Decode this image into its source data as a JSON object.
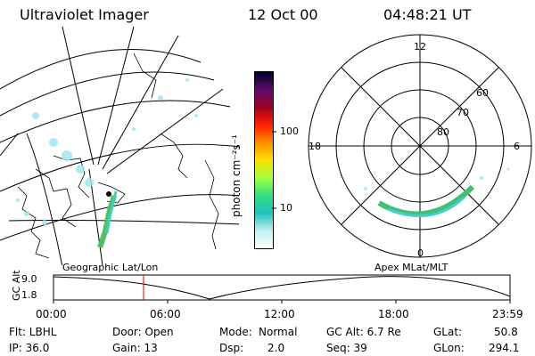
{
  "header": {
    "instrument": "Ultraviolet Imager",
    "date": "12 Oct 00",
    "time": "04:48:21 UT"
  },
  "geo_panel": {
    "label": "Geographic Lat/Lon"
  },
  "colorbar": {
    "unit_label": "photon cm⁻²s⁻¹",
    "ticks": [
      "100",
      "10"
    ],
    "colors": [
      "#000030",
      "#5a0a6a",
      "#a00020",
      "#ff2000",
      "#ff8c00",
      "#ffe000",
      "#a0ff40",
      "#30e080",
      "#20c0c0",
      "#c0f0f0",
      "#ffffff"
    ]
  },
  "polar_panel": {
    "label": "Apex MLat/MLT",
    "mlt_labels": {
      "top": "12",
      "left": "18",
      "right": "6",
      "bottom": "0"
    },
    "lat_labels": [
      "60",
      "70",
      "80"
    ]
  },
  "altitude_strip": {
    "axis_label": "GC Alt",
    "y_ticks": [
      "9.0",
      "1.8"
    ],
    "x_ticks": [
      "00:00",
      "06:00",
      "12:00",
      "18:00",
      "23:59"
    ],
    "marker_color": "#e00000"
  },
  "status": {
    "filter": "Flt: LBHL",
    "door": "Door: Open",
    "mode_label": "Mode:",
    "mode_value": "Normal",
    "gc_alt": "GC Alt: 6.7 Re",
    "glat_label": "GLat:",
    "glat_value": "50.8",
    "ip": "IP: 36.0",
    "gain": "Gain: 13",
    "dsp_label": "Dsp:",
    "dsp_value": "2.0",
    "seq": "Seq: 39",
    "glon_label": "GLon:",
    "glon_value": "294.1"
  }
}
